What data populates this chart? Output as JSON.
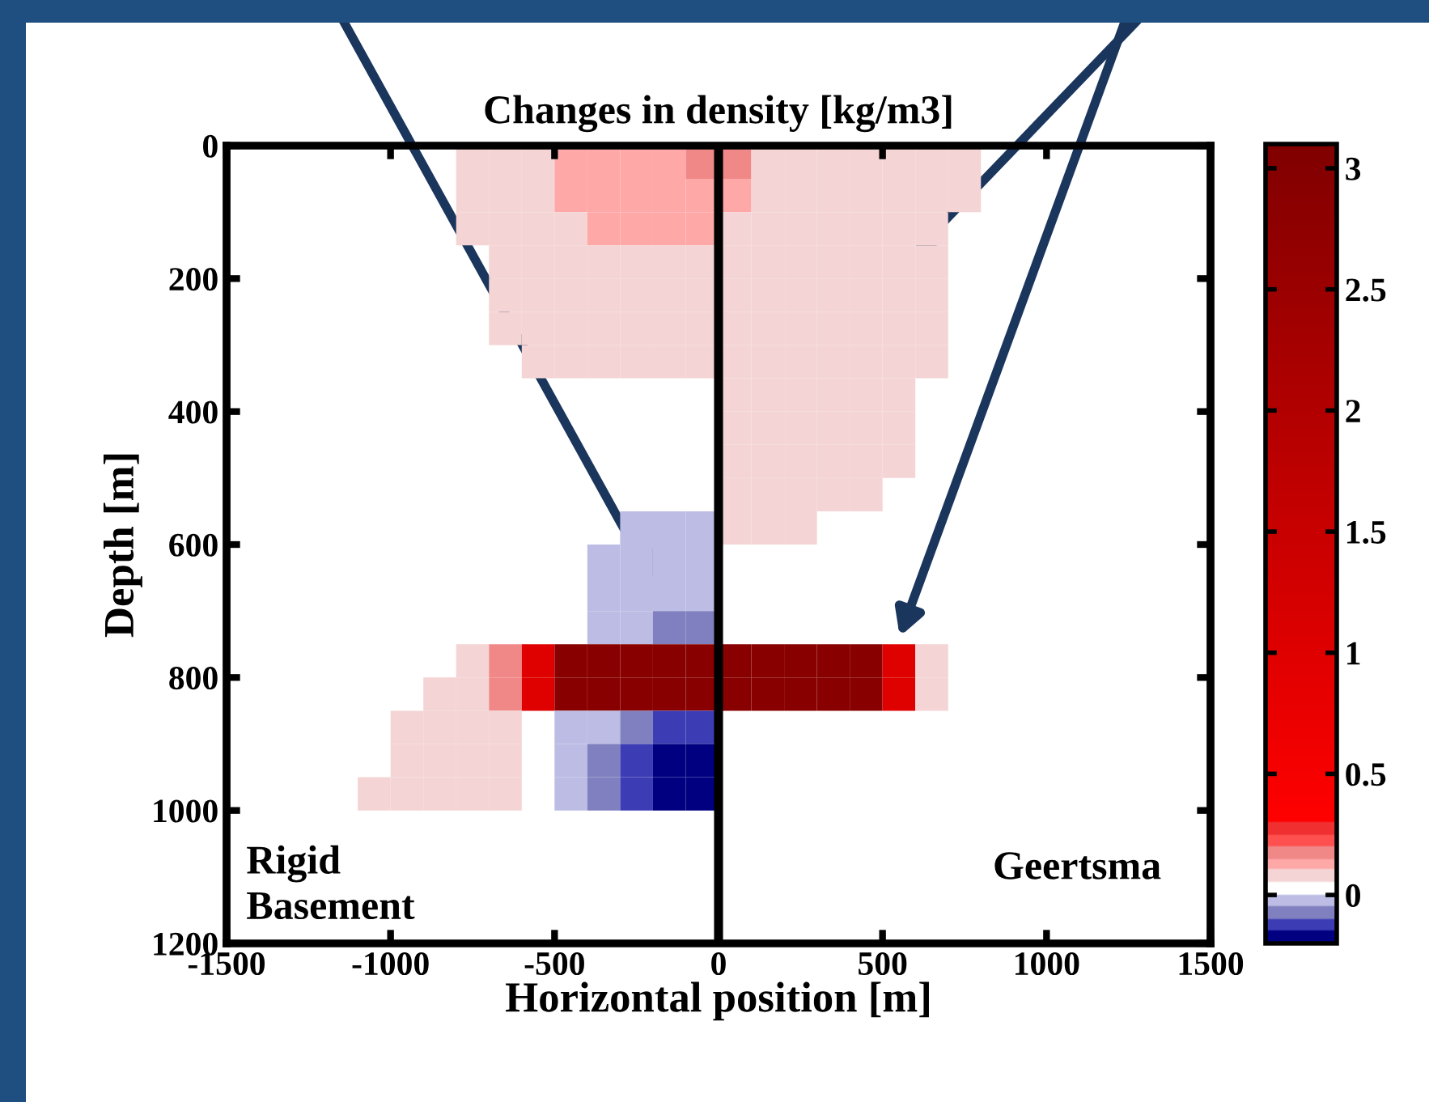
{
  "chart_data": {
    "type": "heatmap",
    "title": "Changes in density [kg/m3]",
    "xlabel": "Horizontal position [m]",
    "ylabel": "Depth [m]",
    "x": [
      -1450,
      -1350,
      -1250,
      -1150,
      -1050,
      -950,
      -850,
      -750,
      -650,
      -550,
      -450,
      -350,
      -250,
      -150,
      -50,
      50,
      150,
      250,
      350,
      450,
      550,
      650,
      750,
      850,
      950,
      1050,
      1150,
      1250,
      1350,
      1450
    ],
    "y": [
      25,
      75,
      125,
      175,
      225,
      275,
      325,
      375,
      425,
      475,
      525,
      575,
      625,
      675,
      725,
      775,
      825,
      875,
      925,
      975
    ],
    "cells": [
      [
        null,
        null,
        null,
        null,
        null,
        null,
        null,
        0.07,
        0.07,
        0.07,
        0.12,
        0.12,
        0.12,
        0.12,
        0.17,
        0.17,
        0.07,
        0.07,
        0.07,
        0.07,
        0.07,
        0.07,
        0.07,
        null,
        null,
        null,
        null,
        null,
        null,
        null
      ],
      [
        null,
        null,
        null,
        null,
        null,
        null,
        null,
        0.07,
        0.07,
        0.07,
        0.12,
        0.12,
        0.12,
        0.12,
        0.12,
        0.12,
        0.07,
        0.07,
        0.07,
        0.07,
        0.07,
        0.07,
        0.07,
        null,
        null,
        null,
        null,
        null,
        null,
        null
      ],
      [
        null,
        null,
        null,
        null,
        null,
        null,
        null,
        0.07,
        0.07,
        0.07,
        0.07,
        0.12,
        0.12,
        0.12,
        0.12,
        0.07,
        0.07,
        0.07,
        0.07,
        0.07,
        0.07,
        0.07,
        null,
        null,
        null,
        null,
        null,
        null,
        null,
        null
      ],
      [
        null,
        null,
        null,
        null,
        null,
        null,
        null,
        null,
        0.07,
        0.07,
        0.07,
        0.07,
        0.07,
        0.07,
        0.07,
        0.07,
        0.07,
        0.07,
        0.07,
        0.07,
        0.07,
        0.07,
        null,
        null,
        null,
        null,
        null,
        null,
        null,
        null
      ],
      [
        null,
        null,
        null,
        null,
        null,
        null,
        null,
        null,
        0.07,
        0.07,
        0.07,
        0.07,
        0.07,
        0.07,
        0.07,
        0.07,
        0.07,
        0.07,
        0.07,
        0.07,
        0.07,
        0.07,
        null,
        null,
        null,
        null,
        null,
        null,
        null,
        null
      ],
      [
        null,
        null,
        null,
        null,
        null,
        null,
        null,
        null,
        0.07,
        0.07,
        0.07,
        0.07,
        0.07,
        0.07,
        0.07,
        0.07,
        0.07,
        0.07,
        0.07,
        0.07,
        0.07,
        0.07,
        null,
        null,
        null,
        null,
        null,
        null,
        null,
        null
      ],
      [
        null,
        null,
        null,
        null,
        null,
        null,
        null,
        null,
        null,
        0.07,
        0.07,
        0.07,
        0.07,
        0.07,
        0.07,
        0.07,
        0.07,
        0.07,
        0.07,
        0.07,
        0.07,
        0.07,
        null,
        null,
        null,
        null,
        null,
        null,
        null,
        null
      ],
      [
        null,
        null,
        null,
        null,
        null,
        null,
        null,
        null,
        null,
        null,
        null,
        null,
        null,
        null,
        null,
        0.07,
        0.07,
        0.07,
        0.07,
        0.07,
        0.07,
        null,
        null,
        null,
        null,
        null,
        null,
        null,
        null,
        null
      ],
      [
        null,
        null,
        null,
        null,
        null,
        null,
        null,
        null,
        null,
        null,
        null,
        null,
        null,
        null,
        null,
        0.07,
        0.07,
        0.07,
        0.07,
        0.07,
        0.07,
        null,
        null,
        null,
        null,
        null,
        null,
        null,
        null,
        null
      ],
      [
        null,
        null,
        null,
        null,
        null,
        null,
        null,
        null,
        null,
        null,
        null,
        null,
        null,
        null,
        null,
        0.07,
        0.07,
        0.07,
        0.07,
        0.07,
        0.07,
        null,
        null,
        null,
        null,
        null,
        null,
        null,
        null,
        null
      ],
      [
        null,
        null,
        null,
        null,
        null,
        null,
        null,
        null,
        null,
        null,
        null,
        null,
        null,
        null,
        null,
        0.07,
        0.07,
        0.07,
        0.07,
        0.07,
        null,
        null,
        null,
        null,
        null,
        null,
        null,
        null,
        null,
        null
      ],
      [
        null,
        null,
        null,
        null,
        null,
        null,
        null,
        null,
        null,
        null,
        null,
        null,
        -0.03,
        -0.03,
        -0.03,
        0.07,
        0.07,
        0.07,
        null,
        null,
        null,
        null,
        null,
        null,
        null,
        null,
        null,
        null,
        null,
        null
      ],
      [
        null,
        null,
        null,
        null,
        null,
        null,
        null,
        null,
        null,
        null,
        null,
        -0.03,
        -0.03,
        -0.03,
        -0.03,
        null,
        null,
        null,
        null,
        null,
        null,
        null,
        null,
        null,
        null,
        null,
        null,
        null,
        null,
        null
      ],
      [
        null,
        null,
        null,
        null,
        null,
        null,
        null,
        null,
        null,
        null,
        null,
        -0.03,
        -0.03,
        -0.03,
        -0.03,
        null,
        null,
        null,
        null,
        null,
        null,
        null,
        null,
        null,
        null,
        null,
        null,
        null,
        null,
        null
      ],
      [
        null,
        null,
        null,
        null,
        null,
        null,
        null,
        null,
        null,
        null,
        null,
        -0.03,
        -0.03,
        -0.08,
        -0.08,
        null,
        null,
        null,
        null,
        null,
        null,
        null,
        null,
        null,
        null,
        null,
        null,
        null,
        null,
        null
      ],
      [
        null,
        null,
        null,
        null,
        null,
        null,
        null,
        0.07,
        0.15,
        1,
        2.9,
        2.9,
        2.9,
        2.9,
        2.9,
        2.9,
        2.9,
        2.9,
        2.9,
        2.9,
        1,
        0.07,
        null,
        null,
        null,
        null,
        null,
        null,
        null,
        null
      ],
      [
        null,
        null,
        null,
        null,
        null,
        null,
        0.07,
        0.07,
        0.15,
        1,
        2.9,
        2.9,
        2.9,
        2.9,
        2.9,
        2.9,
        2.9,
        2.9,
        2.9,
        2.9,
        1,
        0.07,
        null,
        null,
        null,
        null,
        null,
        null,
        null,
        null
      ],
      [
        null,
        null,
        null,
        null,
        null,
        0.07,
        0.07,
        0.07,
        0.07,
        null,
        -0.03,
        -0.03,
        -0.08,
        -0.13,
        -0.13,
        null,
        null,
        null,
        null,
        null,
        null,
        null,
        null,
        null,
        null,
        null,
        null,
        null,
        null,
        null
      ],
      [
        null,
        null,
        null,
        null,
        null,
        0.07,
        0.07,
        0.07,
        0.07,
        null,
        -0.03,
        -0.08,
        -0.13,
        -0.18,
        -0.18,
        null,
        null,
        null,
        null,
        null,
        null,
        null,
        null,
        null,
        null,
        null,
        null,
        null,
        null,
        null
      ],
      [
        null,
        null,
        null,
        null,
        0.07,
        0.07,
        0.07,
        0.07,
        0.07,
        null,
        -0.03,
        -0.08,
        -0.13,
        -0.18,
        -0.18,
        null,
        null,
        null,
        null,
        null,
        null,
        null,
        null,
        null,
        null,
        null,
        null,
        null,
        null,
        null
      ]
    ],
    "xlim": [
      -1500,
      1500
    ],
    "xticks": [
      -1500,
      -1000,
      -500,
      0,
      500,
      1000,
      1500
    ],
    "ylim": [
      1200,
      0
    ],
    "yticks": [
      0,
      200,
      400,
      600,
      800,
      1000,
      1200
    ],
    "clim": [
      -0.2,
      3.1
    ],
    "cticks": [
      0,
      0.5,
      1,
      1.5,
      2,
      2.5,
      3
    ],
    "ref_lines": [
      {
        "axis": "x",
        "value": 0,
        "color": "#000000"
      }
    ],
    "annotations": [
      "Rigid\nBasement",
      "Geertsma"
    ],
    "grid": false
  }
}
